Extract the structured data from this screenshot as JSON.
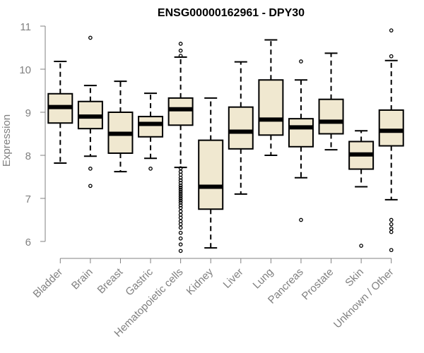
{
  "chart_data": {
    "type": "boxplot",
    "title": "ENSG00000162961 - DPY30",
    "xlabel": "",
    "ylabel": "Expression",
    "ylim": [
      5.7,
      11.1
    ],
    "yticks": [
      6,
      7,
      8,
      9,
      10,
      11
    ],
    "colors": {
      "box_fill": "#f0e8d0",
      "stroke": "#000000",
      "axis": "#808080",
      "text": "#808080"
    },
    "categories": [
      "Bladder",
      "Brain",
      "Breast",
      "Gastric",
      "Hematopoietic cells",
      "Kidney",
      "Liver",
      "Lung",
      "Pancreas",
      "Prostate",
      "Skin",
      "Unknown / Other"
    ],
    "boxes": [
      {
        "name": "Bladder",
        "whisker_low": 7.82,
        "q1": 8.75,
        "median": 9.12,
        "q3": 9.43,
        "whisker_high": 10.18,
        "outliers": []
      },
      {
        "name": "Brain",
        "whisker_low": 7.98,
        "q1": 8.62,
        "median": 8.9,
        "q3": 9.25,
        "whisker_high": 9.62,
        "outliers": [
          10.73,
          7.69,
          7.29
        ]
      },
      {
        "name": "Breast",
        "whisker_low": 7.62,
        "q1": 8.05,
        "median": 8.5,
        "q3": 9.0,
        "whisker_high": 9.72,
        "outliers": []
      },
      {
        "name": "Gastric",
        "whisker_low": 7.93,
        "q1": 8.43,
        "median": 8.73,
        "q3": 8.9,
        "whisker_high": 9.44,
        "outliers": [
          7.69
        ]
      },
      {
        "name": "Hematopoietic cells",
        "whisker_low": 7.72,
        "q1": 8.7,
        "median": 9.07,
        "q3": 9.33,
        "whisker_high": 10.28,
        "outliers": [
          10.59,
          10.43,
          10.31,
          7.7,
          7.62,
          7.55,
          7.48,
          7.42,
          7.36,
          7.3,
          7.25,
          7.2,
          7.15,
          7.1,
          7.05,
          7.0,
          6.95,
          6.9,
          6.84,
          6.78,
          6.7,
          6.62,
          6.55,
          6.47,
          6.4,
          6.32,
          6.2,
          6.07,
          5.93,
          5.78
        ]
      },
      {
        "name": "Kidney",
        "whisker_low": 5.85,
        "q1": 6.75,
        "median": 7.27,
        "q3": 8.35,
        "whisker_high": 9.33,
        "outliers": []
      },
      {
        "name": "Liver",
        "whisker_low": 7.1,
        "q1": 8.15,
        "median": 8.55,
        "q3": 9.12,
        "whisker_high": 10.17,
        "outliers": []
      },
      {
        "name": "Lung",
        "whisker_low": 8.0,
        "q1": 8.47,
        "median": 8.83,
        "q3": 9.75,
        "whisker_high": 10.68,
        "outliers": []
      },
      {
        "name": "Pancreas",
        "whisker_low": 7.48,
        "q1": 8.2,
        "median": 8.65,
        "q3": 8.85,
        "whisker_high": 9.75,
        "outliers": [
          10.18,
          6.5
        ]
      },
      {
        "name": "Prostate",
        "whisker_low": 8.13,
        "q1": 8.5,
        "median": 8.78,
        "q3": 9.3,
        "whisker_high": 10.37,
        "outliers": []
      },
      {
        "name": "Skin",
        "whisker_low": 7.27,
        "q1": 7.68,
        "median": 8.02,
        "q3": 8.32,
        "whisker_high": 8.57,
        "outliers": [
          5.9
        ]
      },
      {
        "name": "Unknown / Other",
        "whisker_low": 6.97,
        "q1": 8.22,
        "median": 8.57,
        "q3": 9.05,
        "whisker_high": 10.2,
        "outliers": [
          10.9,
          10.3,
          6.5,
          6.4,
          6.3,
          6.22,
          5.8
        ]
      }
    ]
  }
}
